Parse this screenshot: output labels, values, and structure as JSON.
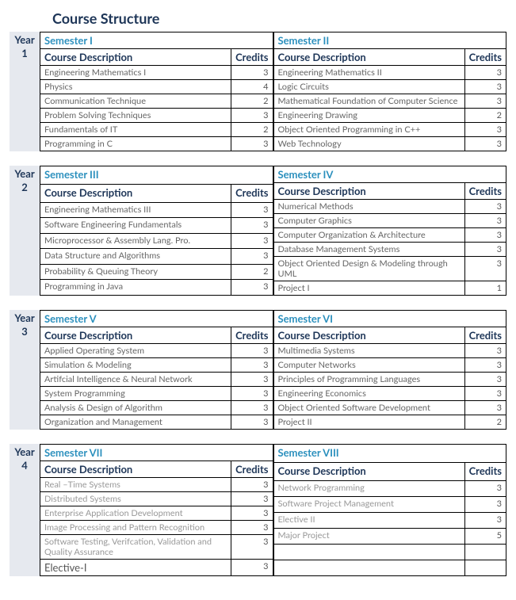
{
  "title": "Course Structure",
  "colHeaders": {
    "desc": "Course Description",
    "credits": "Credits"
  },
  "yearWord": "Year",
  "years": [
    {
      "num": "1",
      "left": {
        "name": "Semester I",
        "rows": [
          {
            "desc": "Engineering Mathematics I",
            "credits": "3"
          },
          {
            "desc": "Physics",
            "credits": "4"
          },
          {
            "desc": "Communication Technique",
            "credits": "2"
          },
          {
            "desc": "Problem Solving Techniques",
            "credits": "3"
          },
          {
            "desc": "Fundamentals of IT",
            "credits": "2"
          },
          {
            "desc": "Programming in C",
            "credits": "3"
          }
        ]
      },
      "right": {
        "name": "Semester II",
        "rows": [
          {
            "desc": "Engineering Mathematics II",
            "credits": "3"
          },
          {
            "desc": "Logic Circuits",
            "credits": "3"
          },
          {
            "desc": "Mathematical Foundation of Computer Science",
            "credits": "3"
          },
          {
            "desc": "Engineering Drawing",
            "credits": "2"
          },
          {
            "desc": "Object Oriented Programming in C++",
            "credits": "3"
          },
          {
            "desc": "Web Technology",
            "credits": "3"
          }
        ]
      }
    },
    {
      "num": "2",
      "left": {
        "name": "Semester III",
        "rows": [
          {
            "desc": "Engineering Mathematics III",
            "credits": "3"
          },
          {
            "desc": "Software Engineering Fundamentals",
            "credits": "3"
          },
          {
            "desc": "Microprocessor & Assembly Lang. Pro.",
            "credits": "3"
          },
          {
            "desc": "Data Structure and Algorithms",
            "credits": "3"
          },
          {
            "desc": "Probability & Queuing Theory",
            "credits": "2"
          },
          {
            "desc": "Programming in Java",
            "credits": "3"
          }
        ]
      },
      "right": {
        "name": "Semester IV",
        "rows": [
          {
            "desc": "Numerical Methods",
            "credits": "3"
          },
          {
            "desc": "Computer Graphics",
            "credits": "3"
          },
          {
            "desc": "Computer Organization & Architecture",
            "credits": "3"
          },
          {
            "desc": "Database Management Systems",
            "credits": "3"
          },
          {
            "desc": "Object Oriented Design & Modeling through UML",
            "credits": "3"
          },
          {
            "desc": "Project I",
            "credits": "1"
          }
        ]
      }
    },
    {
      "num": "3",
      "left": {
        "name": "Semester V",
        "rows": [
          {
            "desc": "Applied Operating System",
            "credits": "3"
          },
          {
            "desc": "Simulation & Modeling",
            "credits": "3"
          },
          {
            "desc": "Artifcial Intelligence & Neural Network",
            "credits": "3"
          },
          {
            "desc": "System Programming",
            "credits": "3"
          },
          {
            "desc": "Analysis & Design of Algorithm",
            "credits": "3"
          },
          {
            "desc": "Organization and Management",
            "credits": "3"
          }
        ]
      },
      "right": {
        "name": "Semester VI",
        "rows": [
          {
            "desc": "Multimedia Systems",
            "credits": "3"
          },
          {
            "desc": "Computer Networks",
            "credits": "3"
          },
          {
            "desc": "Principles of Programming Languages",
            "credits": "3"
          },
          {
            "desc": "Engineering Economics",
            "credits": "3"
          },
          {
            "desc": "Object Oriented Software Development",
            "credits": "3"
          },
          {
            "desc": "Project II",
            "credits": "2"
          }
        ]
      }
    },
    {
      "num": "4",
      "left": {
        "name": "Semester VII",
        "rows": [
          {
            "desc": "Real –Time Systems",
            "credits": "3"
          },
          {
            "desc": "Distributed Systems",
            "credits": "3"
          },
          {
            "desc": "Enterprise Application Development",
            "credits": "3"
          },
          {
            "desc": "Image Processing and Pattern Recognition",
            "credits": "3"
          },
          {
            "desc": "Software Testing, Verifcation, Validation and Quality Assurance",
            "credits": "3"
          },
          {
            "desc": "Elective-I",
            "credits": "3",
            "elective": true
          }
        ]
      },
      "right": {
        "name": "Semester VIII",
        "rows": [
          {
            "desc": "Network Programming",
            "credits": "3"
          },
          {
            "desc": "Software Project Management",
            "credits": "3"
          },
          {
            "desc": "Elective II",
            "credits": "3"
          },
          {
            "desc": "Major Project",
            "credits": "5"
          }
        ]
      }
    }
  ]
}
